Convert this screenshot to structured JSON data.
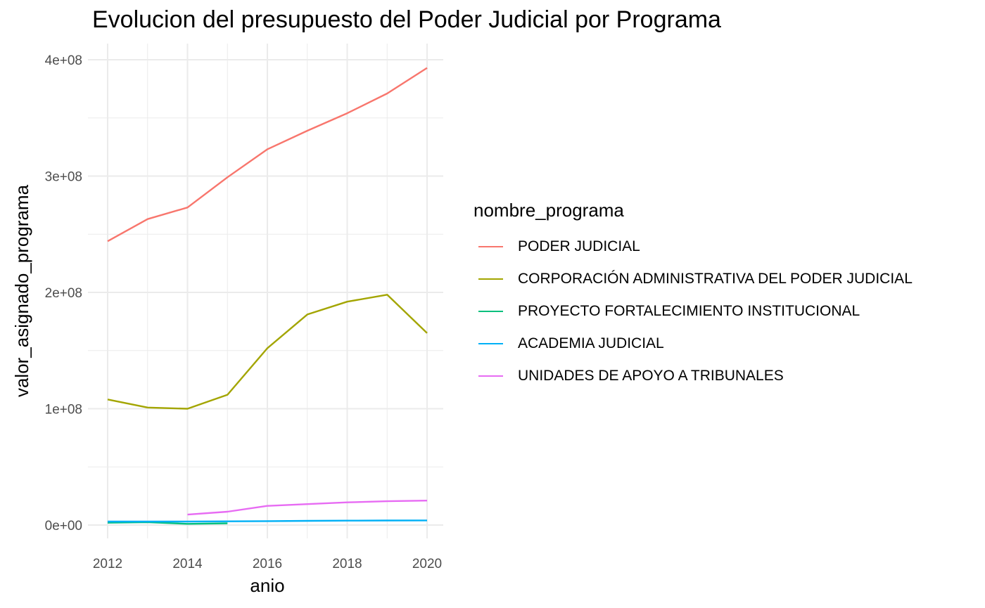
{
  "chart_data": {
    "type": "line",
    "title": "Evolucion del presupuesto del Poder Judicial por Programa",
    "xlabel": "anio",
    "ylabel": "valor_asignado_programa",
    "xlim": [
      2012,
      2020
    ],
    "ylim": [
      0,
      400000000
    ],
    "x_ticks": [
      2012,
      2014,
      2016,
      2018,
      2020
    ],
    "x_tick_labels": [
      "2012",
      "2014",
      "2016",
      "2018",
      "2020"
    ],
    "y_ticks": [
      0,
      100000000,
      200000000,
      300000000,
      400000000
    ],
    "y_tick_labels": [
      "0e+00",
      "1e+08",
      "2e+08",
      "3e+08",
      "4e+08"
    ],
    "grid": true,
    "legend_title": "nombre_programa",
    "legend_position": "right",
    "series": [
      {
        "name": "PODER JUDICIAL",
        "color": "#F8766D",
        "x": [
          2012,
          2013,
          2014,
          2015,
          2016,
          2017,
          2018,
          2019,
          2020
        ],
        "values": [
          244000000,
          263000000,
          273000000,
          299000000,
          323000000,
          339000000,
          354000000,
          371000000,
          393000000
        ]
      },
      {
        "name": "CORPORACIÓN ADMINISTRATIVA DEL PODER JUDICIAL",
        "color": "#A3A500",
        "x": [
          2012,
          2013,
          2014,
          2015,
          2016,
          2017,
          2018,
          2019,
          2020
        ],
        "values": [
          108000000,
          101000000,
          100000000,
          112000000,
          152000000,
          181000000,
          192000000,
          198000000,
          165000000
        ]
      },
      {
        "name": "PROYECTO FORTALECIMIENTO INSTITUCIONAL",
        "color": "#00BF7D",
        "x": [
          2012,
          2013,
          2014,
          2015
        ],
        "values": [
          2000000,
          2500000,
          1000000,
          1500000
        ]
      },
      {
        "name": "ACADEMIA JUDICIAL",
        "color": "#00B0F6",
        "x": [
          2012,
          2013,
          2014,
          2015,
          2016,
          2017,
          2018,
          2019,
          2020
        ],
        "values": [
          3000000,
          3000000,
          3000000,
          3200000,
          3400000,
          3600000,
          3800000,
          3900000,
          4000000
        ]
      },
      {
        "name": "UNIDADES DE APOYO A TRIBUNALES",
        "color": "#E76BF3",
        "x": [
          2014,
          2015,
          2016,
          2017,
          2018,
          2019,
          2020
        ],
        "values": [
          9000000,
          11500000,
          16500000,
          18000000,
          19500000,
          20500000,
          21000000
        ]
      }
    ]
  }
}
